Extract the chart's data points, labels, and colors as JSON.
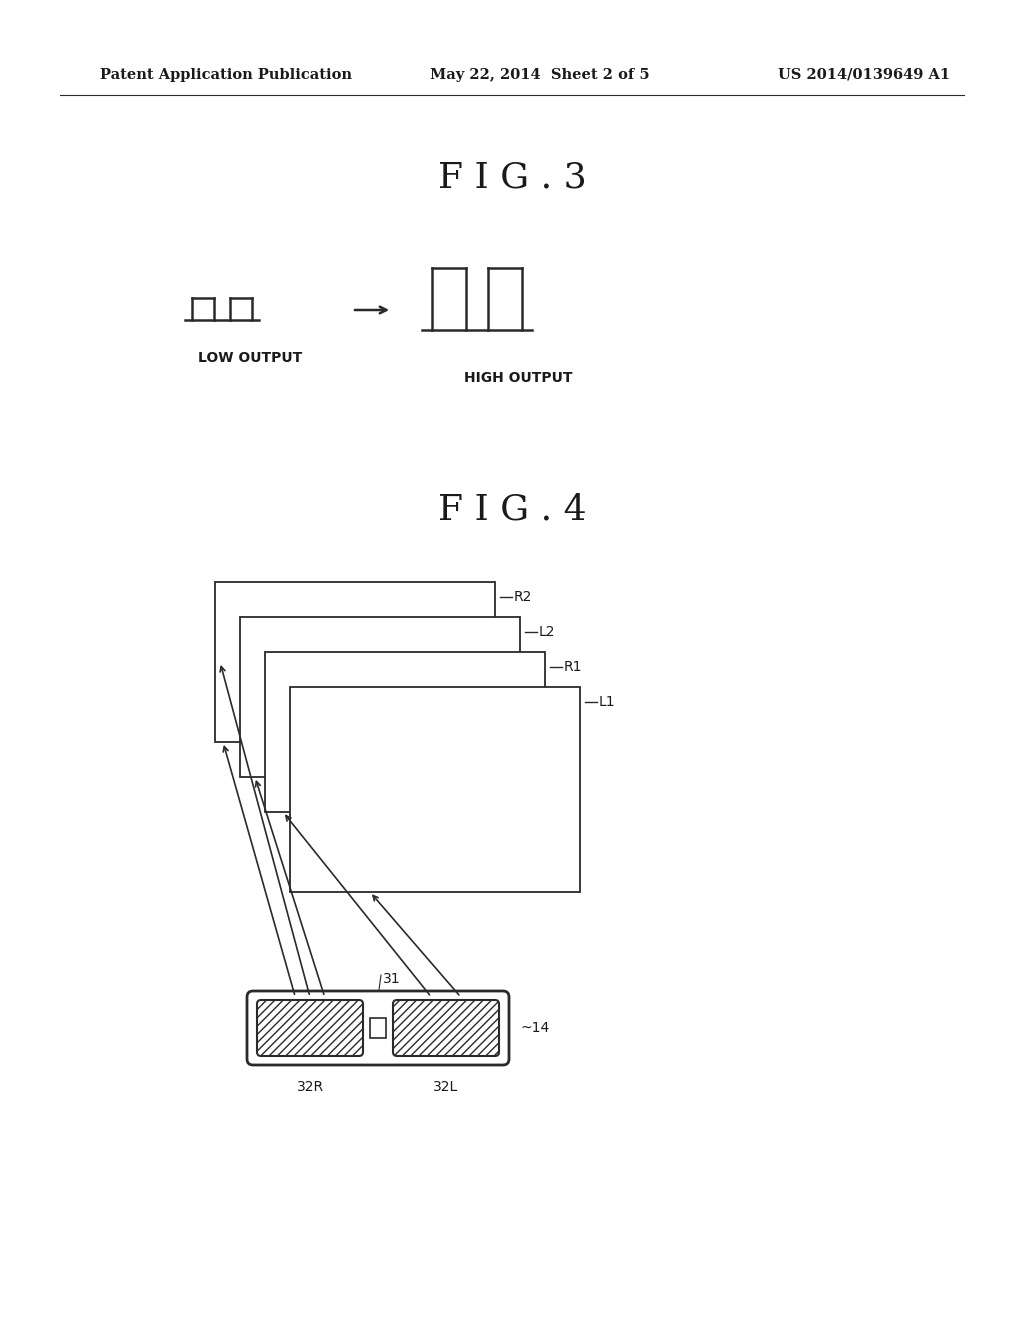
{
  "bg_color": "#ffffff",
  "text_color": "#1a1a1a",
  "line_color": "#2a2a2a",
  "header_left": "Patent Application Publication",
  "header_center": "May 22, 2014  Sheet 2 of 5",
  "header_right": "US 2014/0139649 A1",
  "fig3_title": "F I G . 3",
  "fig4_title": "F I G . 4",
  "low_output_label": "LOW OUTPUT",
  "high_output_label": "HIGH OUTPUT",
  "label_31": "31",
  "label_14": "14",
  "label_32R": "32R",
  "label_32L": "32L"
}
